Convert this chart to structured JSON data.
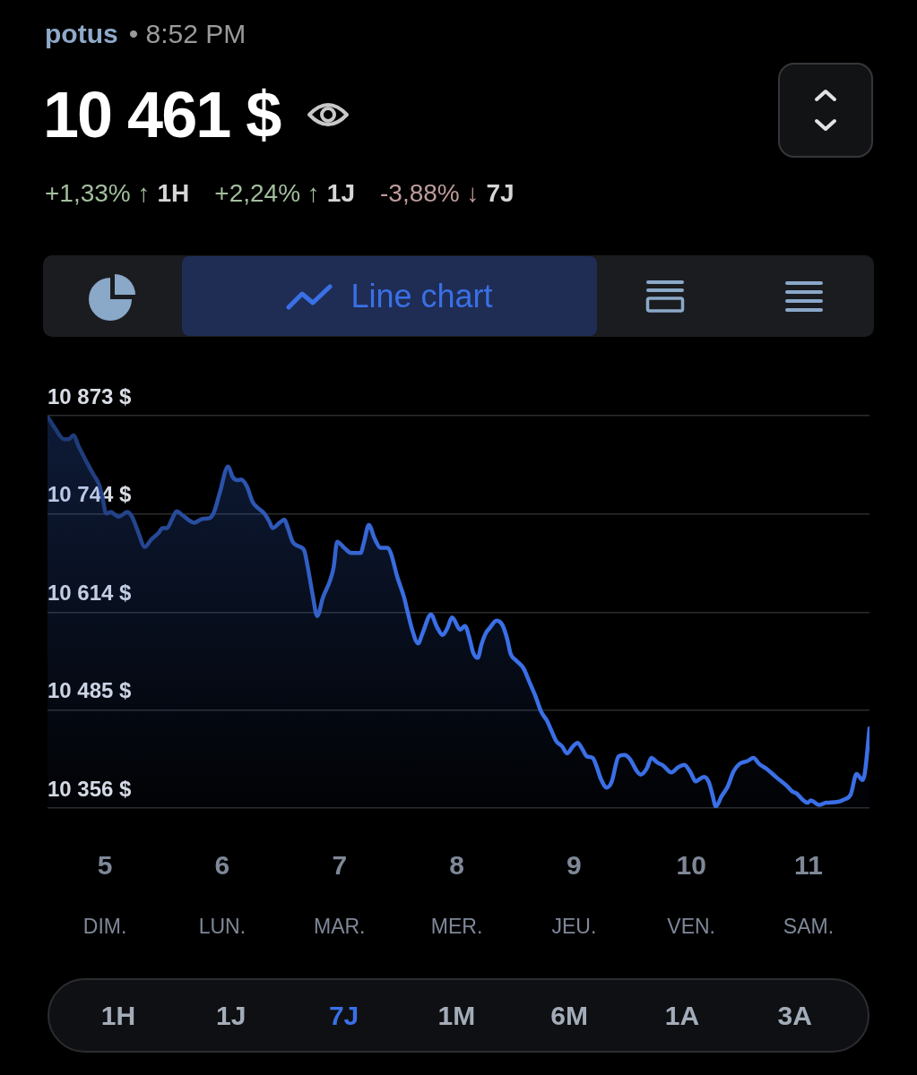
{
  "chart_data": {
    "type": "area",
    "title": "10 461 $",
    "annotations": [
      "potus",
      "• 8:52 PM",
      "+1,33% ↑",
      "1H",
      "+2,24% ↑",
      "1J",
      "-3,88% ↓",
      "7J",
      "Line chart",
      "DIM.",
      "LUN.",
      "MAR.",
      "MER.",
      "JEU.",
      "VEN.",
      "SAM.",
      "1H",
      "1J",
      "7J",
      "1M",
      "6M",
      "1A",
      "3A"
    ],
    "x": [
      4.51,
      4.58,
      4.65,
      4.69,
      4.73,
      4.78,
      4.84,
      4.9,
      4.95,
      4.98,
      5.01,
      5.05,
      5.09,
      5.12,
      5.19,
      5.23,
      5.28,
      5.34,
      5.39,
      5.46,
      5.49,
      5.53,
      5.57,
      5.61,
      5.66,
      5.71,
      5.76,
      5.83,
      5.89,
      5.93,
      5.98,
      6.05,
      6.09,
      6.13,
      6.16,
      6.21,
      6.26,
      6.3,
      6.36,
      6.4,
      6.43,
      6.49,
      6.53,
      6.56,
      6.6,
      6.65,
      6.7,
      6.73,
      6.77,
      6.81,
      6.86,
      6.92,
      6.95,
      6.98,
      7.04,
      7.1,
      7.18,
      7.21,
      7.25,
      7.3,
      7.35,
      7.41,
      7.44,
      7.49,
      7.55,
      7.58,
      7.62,
      7.67,
      7.71,
      7.78,
      7.83,
      7.88,
      7.92,
      7.96,
      8.03,
      8.07,
      8.11,
      8.14,
      8.18,
      8.21,
      8.25,
      8.28,
      8.34,
      8.39,
      8.43,
      8.46,
      8.51,
      8.57,
      8.62,
      8.67,
      8.72,
      8.77,
      8.81,
      8.85,
      8.9,
      8.94,
      8.99,
      9.03,
      9.07,
      9.11,
      9.16,
      9.19,
      9.23,
      9.28,
      9.32,
      9.38,
      9.43,
      9.48,
      9.53,
      9.57,
      9.62,
      9.66,
      9.71,
      9.76,
      9.83,
      9.89,
      9.94,
      9.99,
      10.04,
      10.07,
      10.11,
      10.15,
      10.18,
      10.21,
      10.26,
      10.31,
      10.36,
      10.41,
      10.48,
      10.53,
      10.58,
      10.64,
      10.73,
      10.81,
      10.86,
      10.9,
      10.95,
      10.99,
      11.02,
      11.09,
      11.15,
      11.24,
      11.3,
      11.36,
      11.41,
      11.46,
      11.48,
      11.52
    ],
    "series": [
      {
        "color": "#3a6fe6",
        "values": [
          10872,
          10855,
          10842,
          10842,
          10847,
          10831,
          10813,
          10796,
          10782,
          10764,
          10744,
          10746,
          10742,
          10740,
          10746,
          10740,
          10721,
          10700,
          10709,
          10719,
          10725,
          10725,
          10736,
          10747,
          10742,
          10736,
          10732,
          10737,
          10738,
          10746,
          10772,
          10806,
          10792,
          10788,
          10789,
          10780,
          10759,
          10752,
          10744,
          10734,
          10725,
          10732,
          10736,
          10725,
          10707,
          10701,
          10695,
          10673,
          10638,
          10609,
          10634,
          10656,
          10673,
          10707,
          10699,
          10692,
          10692,
          10707,
          10729,
          10711,
          10699,
          10699,
          10691,
          10662,
          10634,
          10615,
          10591,
          10573,
          10587,
          10611,
          10595,
          10584,
          10593,
          10607,
          10591,
          10596,
          10579,
          10561,
          10554,
          10571,
          10587,
          10593,
          10603,
          10597,
          10579,
          10559,
          10550,
          10540,
          10522,
          10504,
          10483,
          10471,
          10457,
          10444,
          10437,
          10428,
          10437,
          10442,
          10434,
          10424,
          10422,
          10412,
          10394,
          10383,
          10390,
          10424,
          10426,
          10420,
          10406,
          10400,
          10408,
          10422,
          10416,
          10412,
          10403,
          10410,
          10413,
          10404,
          10391,
          10394,
          10397,
          10390,
          10374,
          10358,
          10372,
          10384,
          10404,
          10414,
          10418,
          10422,
          10414,
          10408,
          10396,
          10386,
          10378,
          10375,
          10367,
          10363,
          10366,
          10360,
          10363,
          10364,
          10367,
          10374,
          10401,
          10393,
          10402,
          10461
        ]
      }
    ],
    "xlim": [
      4.51,
      11.52
    ],
    "xticks": [
      5,
      6,
      7,
      8,
      9,
      10,
      11
    ],
    "ylim": [
      10356,
      10873
    ],
    "yticks": [
      {
        "value": 10356,
        "label": "10 356 $"
      },
      {
        "value": 10485,
        "label": "10 485 $"
      },
      {
        "value": 10614,
        "label": "10 614 $"
      },
      {
        "value": 10744,
        "label": "10 744 $"
      },
      {
        "value": 10873,
        "label": "10 873 $"
      }
    ],
    "grid": "y"
  }
}
